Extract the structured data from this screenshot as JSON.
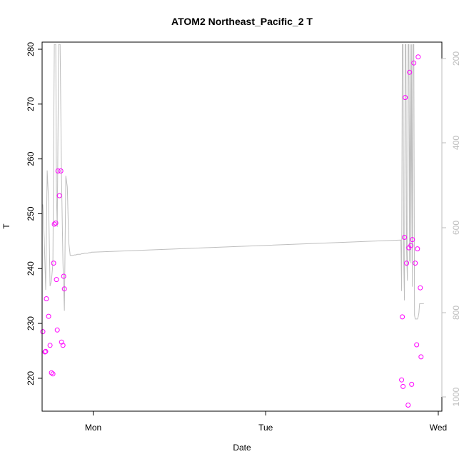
{
  "chart_data": {
    "type": "scatter",
    "title": "ATOM2 Northeast_Pacific_2 T",
    "xlabel": "Date",
    "ylabel": "T",
    "x_ticks": [
      "Mon",
      "Tue",
      "Wed"
    ],
    "x_tick_values": [
      24,
      48,
      72
    ],
    "y_ticks": [
      220,
      230,
      240,
      250,
      260,
      270,
      280
    ],
    "y_right_ticks": [
      200,
      400,
      600,
      800,
      1000
    ],
    "xlim": [
      16.9,
      72.5
    ],
    "ylim": [
      214,
      281.3
    ],
    "y_right_lim": [
      975,
      1010
    ],
    "grid": false,
    "colors": {
      "points": "#ff00ff",
      "line": "#bebebe",
      "axis": "#000000",
      "right_axis": "#bdbdbd"
    },
    "series": [
      {
        "type": "scatter",
        "x": [
          17.0,
          17.3,
          17.4,
          17.5,
          17.8,
          18.0,
          18.2,
          18.4,
          18.5,
          18.6,
          18.8,
          18.9,
          19.0,
          19.1,
          19.3,
          19.5,
          19.6,
          19.8,
          19.9,
          20.0,
          66.9,
          67.0,
          67.1,
          67.3,
          67.4,
          67.6,
          67.8,
          67.9,
          68.0,
          68.2,
          68.3,
          68.4,
          68.6,
          68.8,
          69.0,
          69.1,
          69.2,
          69.5,
          69.6
        ],
        "y": [
          228.5,
          224.8,
          224.9,
          234.5,
          231.3,
          226.0,
          221.0,
          220.8,
          241.0,
          248.1,
          248.3,
          238.0,
          228.8,
          257.8,
          253.3,
          257.8,
          226.6,
          226.0,
          238.6,
          236.3,
          219.7,
          231.2,
          218.5,
          245.7,
          271.2,
          241.0,
          215.1,
          243.8,
          275.8,
          244.2,
          218.9,
          245.3,
          277.5,
          241.0,
          226.1,
          243.6,
          278.6,
          236.5,
          223.9
        ]
      },
      {
        "type": "line",
        "x": [
          17.0,
          17.2,
          17.4,
          17.6,
          17.8,
          18.0,
          18.2,
          18.4,
          18.6,
          18.8,
          18.9,
          19.0,
          19.2,
          19.4,
          19.6,
          19.8,
          20.0,
          20.2,
          20.4,
          20.6,
          20.8,
          21.0,
          21.2,
          21.4,
          21.6,
          21.8,
          22.0,
          22.2,
          22.4,
          22.6,
          22.8,
          23.0,
          23.2,
          23.4,
          23.6,
          23.8,
          24.0,
          66.8,
          66.9,
          67.0,
          67.1,
          67.2,
          67.3,
          67.4,
          67.5,
          67.6,
          67.7,
          67.8,
          67.9,
          68.0,
          68.1,
          68.2,
          68.3,
          68.4,
          68.5,
          68.6,
          68.7,
          68.8,
          68.9,
          69.0,
          69.1,
          69.2,
          69.3,
          69.4,
          69.5,
          69.6,
          69.7,
          69.8,
          69.9,
          70.0
        ],
        "y": [
          251.7,
          245.3,
          236.1,
          257.9,
          252.2,
          236.8,
          237.8,
          241.0,
          280.9,
          280.9,
          253.3,
          247.6,
          280.9,
          280.9,
          256.5,
          241.0,
          232.3,
          256.9,
          254.9,
          244.8,
          242.4,
          242.4,
          242.4,
          242.5,
          242.5,
          242.6,
          242.6,
          242.6,
          242.7,
          242.7,
          242.8,
          242.8,
          242.8,
          242.9,
          242.9,
          243.0,
          243.0,
          245.2,
          235.9,
          280.9,
          280.9,
          241.0,
          234.2,
          280.9,
          280.9,
          243.0,
          237.8,
          280.9,
          280.9,
          241.3,
          280.9,
          241.0,
          280.9,
          236.7,
          280.9,
          280.9,
          231.5,
          230.8,
          230.8,
          230.8,
          230.8,
          231.2,
          231.9,
          233.6,
          233.6,
          233.6,
          233.6,
          233.6,
          233.6,
          233.6
        ]
      }
    ]
  }
}
